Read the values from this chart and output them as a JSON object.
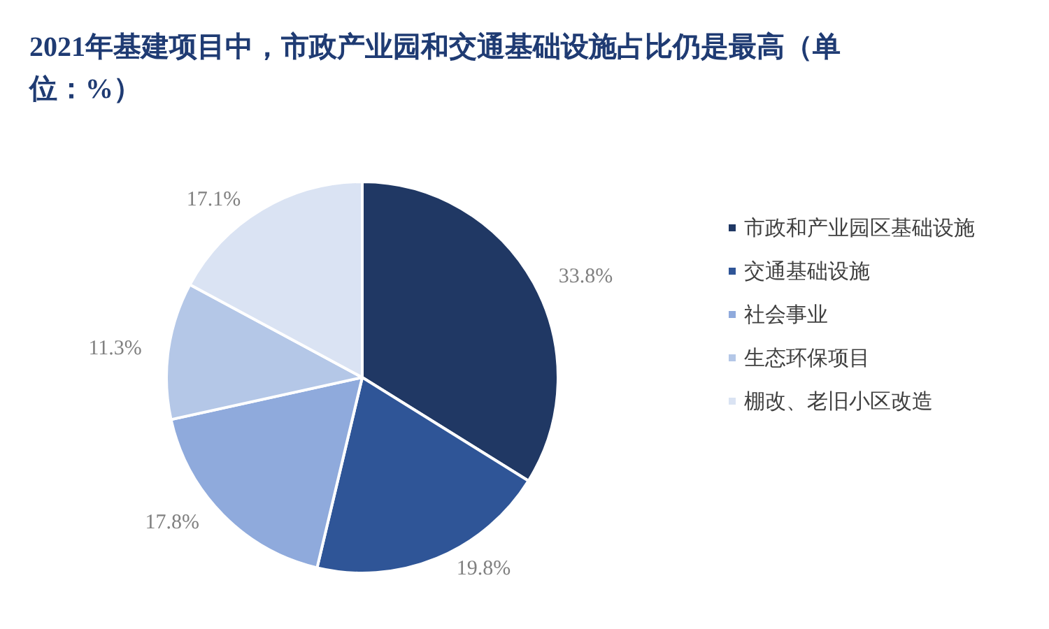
{
  "chart_data": {
    "type": "pie",
    "title": "2021年基建项目中，市政产业园和交通基础设施占比仍是最高（单位：%）",
    "categories": [
      "市政和产业园区基础设施",
      "交通基础设施",
      "社会事业",
      "生态环保项目",
      "棚改、老旧小区改造"
    ],
    "values": [
      33.8,
      19.8,
      17.8,
      11.3,
      17.1
    ],
    "value_labels": [
      "33.8%",
      "19.8%",
      "17.8%",
      "11.3%",
      "17.1%"
    ],
    "colors": [
      "#203864",
      "#2f5597",
      "#8faadc",
      "#b4c7e7",
      "#dae3f3"
    ],
    "legend": "right"
  }
}
